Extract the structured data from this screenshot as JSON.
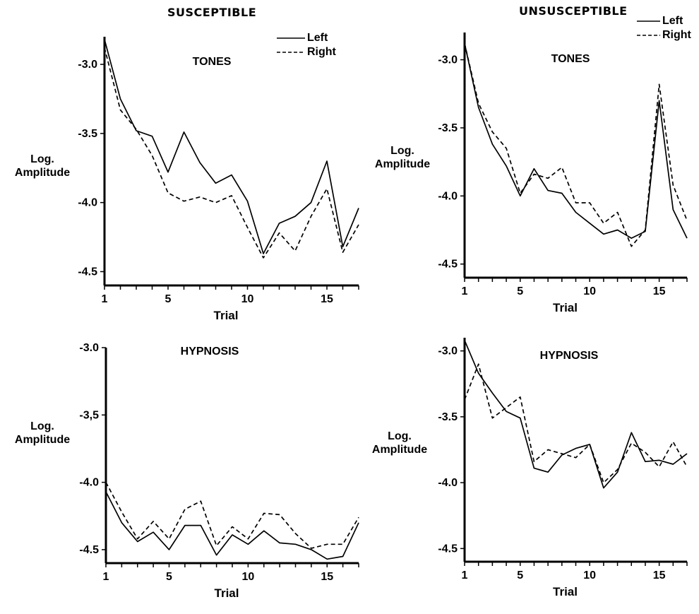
{
  "figure": {
    "column_headers": {
      "left": "SUSCEPTIBLE",
      "right": "UNSUSCEPTIBLE"
    }
  },
  "legend": {
    "left_label": "Left",
    "right_label": "Right"
  },
  "chart_data": [
    {
      "type": "line",
      "title": "TONES",
      "group": "SUSCEPTIBLE",
      "xlabel": "Trial",
      "ylabel": [
        "Log.",
        "Amplitude"
      ],
      "xlim": [
        1,
        17
      ],
      "ylim": [
        -4.6,
        -2.8
      ],
      "xticks": [
        1,
        5,
        10,
        15
      ],
      "yticks": [
        -3.0,
        -3.5,
        -4.0,
        -4.5
      ],
      "ytick_labels": [
        "-3.0",
        "-3.5",
        "-4.0",
        "-4.5"
      ],
      "x": [
        1,
        2,
        3,
        4,
        5,
        6,
        7,
        8,
        9,
        10,
        11,
        12,
        13,
        14,
        15,
        16,
        17
      ],
      "series": [
        {
          "name": "Left",
          "style": "solid",
          "values": [
            -2.82,
            -3.25,
            -3.48,
            -3.52,
            -3.78,
            -3.49,
            -3.71,
            -3.86,
            -3.8,
            -3.99,
            -4.37,
            -4.15,
            -4.1,
            -4.0,
            -3.7,
            -4.32,
            -4.04
          ]
        },
        {
          "name": "Right",
          "style": "dashed",
          "values": [
            -2.88,
            -3.33,
            -3.47,
            -3.66,
            -3.93,
            -3.99,
            -3.96,
            -4.0,
            -3.95,
            -4.18,
            -4.4,
            -4.22,
            -4.35,
            -4.1,
            -3.9,
            -4.36,
            -4.16
          ]
        }
      ]
    },
    {
      "type": "line",
      "title": "TONES",
      "group": "UNSUSCEPTIBLE",
      "xlabel": "Trial",
      "ylabel": [
        "Log.",
        "Amplitude"
      ],
      "xlim": [
        1,
        17
      ],
      "ylim": [
        -4.6,
        -2.8
      ],
      "xticks": [
        1,
        5,
        10,
        15
      ],
      "yticks": [
        -3.0,
        -3.5,
        -4.0,
        -4.5
      ],
      "ytick_labels": [
        "-3.0",
        "-3.5",
        "-4.0",
        "-4.5"
      ],
      "x": [
        1,
        2,
        3,
        4,
        5,
        6,
        7,
        8,
        9,
        10,
        11,
        12,
        13,
        14,
        15,
        16,
        17
      ],
      "series": [
        {
          "name": "Left",
          "style": "solid",
          "values": [
            -2.88,
            -3.35,
            -3.62,
            -3.78,
            -4.0,
            -3.8,
            -3.96,
            -3.98,
            -4.12,
            -4.2,
            -4.28,
            -4.25,
            -4.31,
            -4.26,
            -3.3,
            -4.1,
            -4.31
          ]
        },
        {
          "name": "Right",
          "style": "dashed",
          "values": [
            -2.88,
            -3.32,
            -3.53,
            -3.65,
            -3.98,
            -3.84,
            -3.87,
            -3.79,
            -4.05,
            -4.05,
            -4.2,
            -4.12,
            -4.37,
            -4.25,
            -3.18,
            -3.92,
            -4.18
          ]
        }
      ]
    },
    {
      "type": "line",
      "title": "HYPNOSIS",
      "group": "SUSCEPTIBLE",
      "xlabel": "Trial",
      "ylabel": [
        "Log.",
        "Amplitude"
      ],
      "xlim": [
        1,
        17
      ],
      "ylim": [
        -4.6,
        -3.0
      ],
      "xticks": [
        1,
        5,
        10,
        15
      ],
      "yticks": [
        -3.0,
        -3.5,
        -4.0,
        -4.5
      ],
      "ytick_labels": [
        "-3.0",
        "-3,5",
        "-4.0",
        "-4.5"
      ],
      "x": [
        1,
        2,
        3,
        4,
        5,
        6,
        7,
        8,
        9,
        10,
        11,
        12,
        13,
        14,
        15,
        16,
        17
      ],
      "series": [
        {
          "name": "Left",
          "style": "solid",
          "values": [
            -4.07,
            -4.3,
            -4.44,
            -4.37,
            -4.5,
            -4.32,
            -4.32,
            -4.54,
            -4.39,
            -4.46,
            -4.36,
            -4.45,
            -4.46,
            -4.5,
            -4.57,
            -4.55,
            -4.3
          ]
        },
        {
          "name": "Right",
          "style": "dashed",
          "values": [
            -4.0,
            -4.22,
            -4.42,
            -4.29,
            -4.42,
            -4.2,
            -4.14,
            -4.47,
            -4.33,
            -4.42,
            -4.23,
            -4.24,
            -4.38,
            -4.49,
            -4.46,
            -4.46,
            -4.26
          ]
        }
      ]
    },
    {
      "type": "line",
      "title": "HYPNOSIS",
      "group": "UNSUSCEPTIBLE",
      "xlabel": "Trial",
      "ylabel": [
        "Log.",
        "Amplitude"
      ],
      "xlim": [
        1,
        17
      ],
      "ylim": [
        -4.6,
        -2.9
      ],
      "xticks": [
        1,
        5,
        10,
        15
      ],
      "yticks": [
        -3.0,
        -3.5,
        -4.0,
        -4.5
      ],
      "ytick_labels": [
        "-3.0",
        "-3.5",
        "-4.0",
        "-4.5"
      ],
      "x": [
        1,
        2,
        3,
        4,
        5,
        6,
        7,
        8,
        9,
        10,
        11,
        12,
        13,
        14,
        15,
        16,
        17
      ],
      "series": [
        {
          "name": "Left",
          "style": "solid",
          "values": [
            -2.92,
            -3.17,
            -3.32,
            -3.46,
            -3.51,
            -3.89,
            -3.92,
            -3.79,
            -3.74,
            -3.71,
            -4.04,
            -3.92,
            -3.62,
            -3.84,
            -3.83,
            -3.86,
            -3.78
          ]
        },
        {
          "name": "Right",
          "style": "dashed",
          "values": [
            -3.37,
            -3.1,
            -3.51,
            -3.43,
            -3.35,
            -3.84,
            -3.75,
            -3.78,
            -3.81,
            -3.71,
            -4.0,
            -3.9,
            -3.7,
            -3.77,
            -3.88,
            -3.69,
            -3.88
          ]
        }
      ]
    }
  ]
}
